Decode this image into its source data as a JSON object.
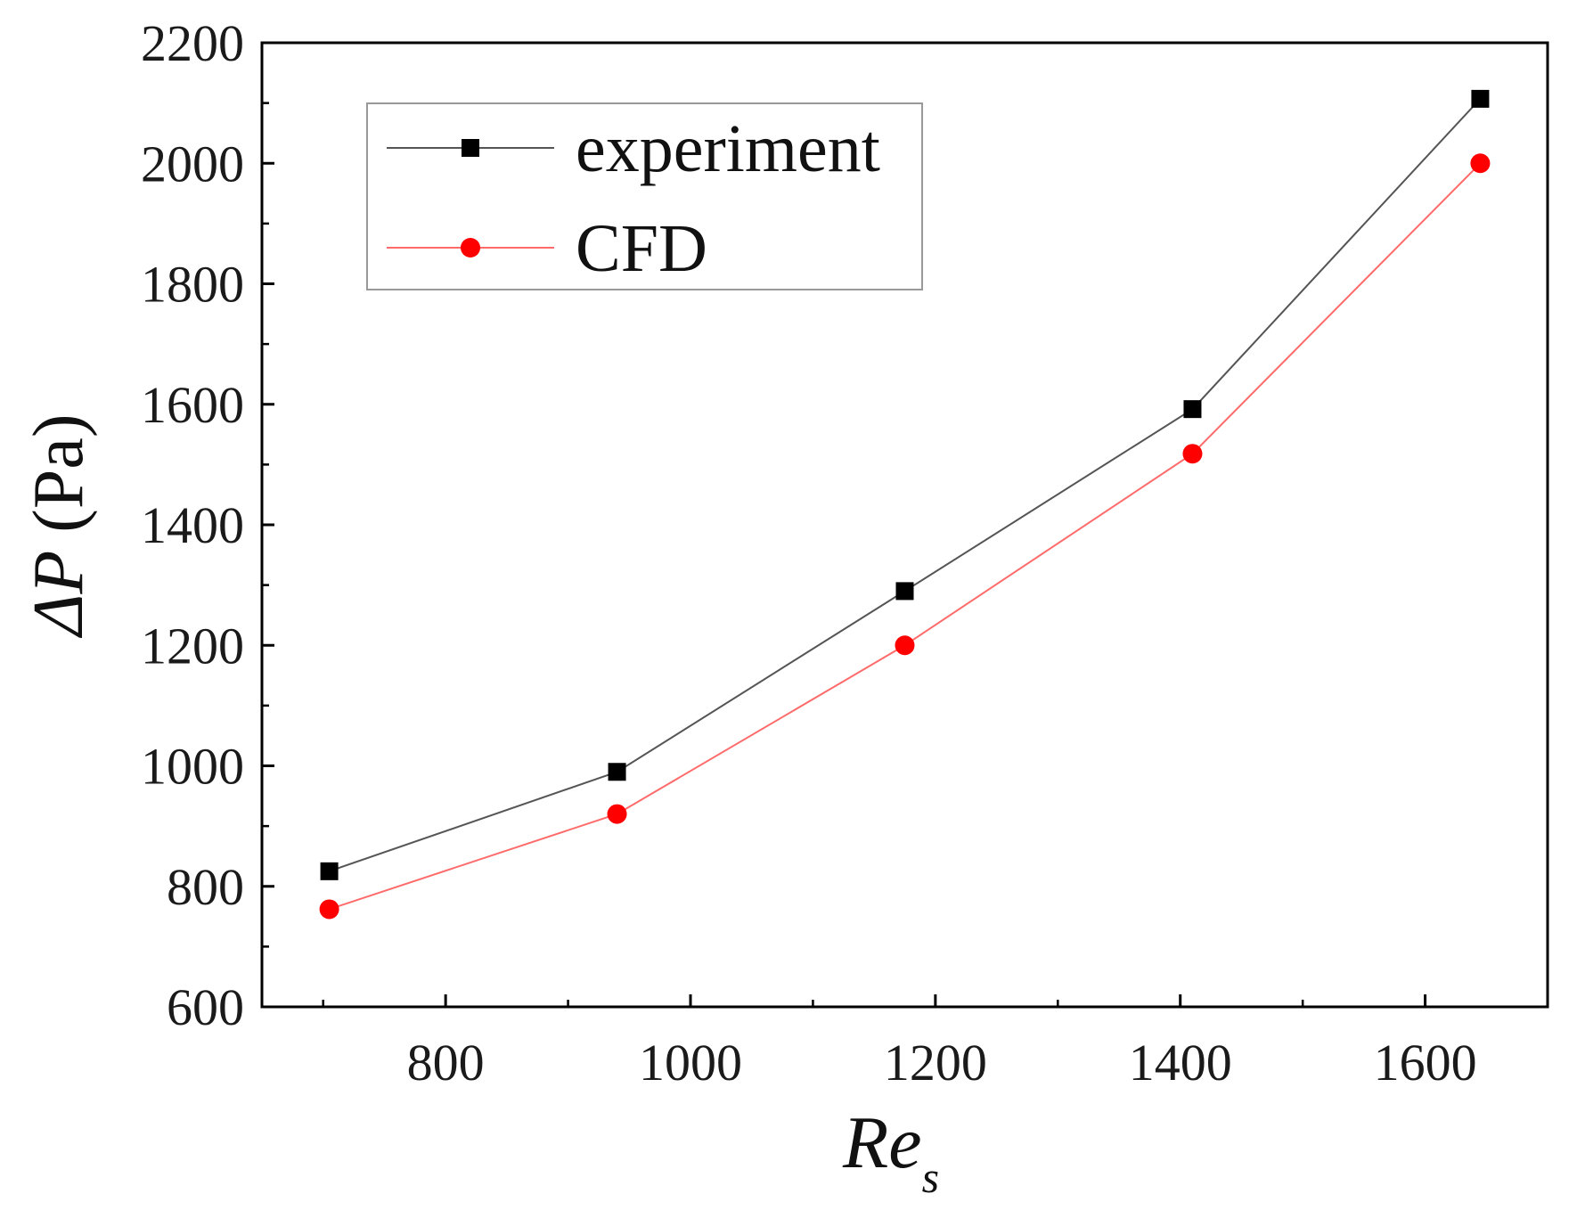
{
  "chart_data": {
    "type": "line",
    "title": "",
    "xlabel": "Re",
    "xlabel_sub": "s",
    "ylabel": "ΔP",
    "ylabel_unit": " (Pa)",
    "xlim": [
      650,
      1700
    ],
    "ylim": [
      600,
      2200
    ],
    "xticks": [
      800,
      1000,
      1200,
      1400,
      1600
    ],
    "xminor": [
      700,
      900,
      1100,
      1300,
      1500,
      1700
    ],
    "yticks": [
      600,
      800,
      1000,
      1200,
      1400,
      1600,
      1800,
      2000,
      2200
    ],
    "yminor": [
      700,
      900,
      1100,
      1300,
      1500,
      1700,
      1900,
      2100
    ],
    "grid": false,
    "legend_position": "top-left",
    "series": [
      {
        "name": "experiment",
        "marker": "square",
        "color": "#000000",
        "line_color": "#555555",
        "x": [
          705,
          940,
          1175,
          1410,
          1645
        ],
        "y": [
          825,
          990,
          1290,
          1592,
          2107
        ]
      },
      {
        "name": "CFD",
        "marker": "circle",
        "color": "#ff0000",
        "line_color": "#ff6b6b",
        "x": [
          705,
          940,
          1175,
          1410,
          1645
        ],
        "y": [
          762,
          920,
          1200,
          1518,
          2000
        ]
      }
    ]
  }
}
